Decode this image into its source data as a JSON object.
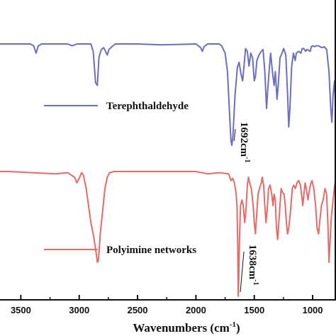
{
  "chart_data": {
    "type": "line",
    "xlabel": "Wavenumbers (cm",
    "xlabel_sup": "-1",
    "xlabel_close": ")",
    "x_ticks": [
      3500,
      3000,
      2500,
      2000,
      1500,
      1000
    ],
    "xlim": [
      3800,
      800
    ],
    "x_reversed": true,
    "grid": false,
    "legend_placement": "inline-right",
    "series": [
      {
        "name": "Terephthaldehyde",
        "color": "#6a6fbf",
        "points": [
          [
            3800,
            0.0
          ],
          [
            3420,
            0.0
          ],
          [
            3390,
            0.02
          ],
          [
            3370,
            0.1
          ],
          [
            3350,
            0.02
          ],
          [
            3320,
            0.0
          ],
          [
            3100,
            0.0
          ],
          [
            3060,
            0.02
          ],
          [
            3020,
            0.0
          ],
          [
            2900,
            0.0
          ],
          [
            2880,
            0.08
          ],
          [
            2860,
            0.42
          ],
          [
            2845,
            0.45
          ],
          [
            2830,
            0.14
          ],
          [
            2810,
            0.06
          ],
          [
            2790,
            0.04
          ],
          [
            2760,
            0.12
          ],
          [
            2745,
            0.06
          ],
          [
            2720,
            0.03
          ],
          [
            2690,
            0.0
          ],
          [
            2500,
            0.0
          ],
          [
            2300,
            0.01
          ],
          [
            2000,
            0.0
          ],
          [
            1960,
            0.04
          ],
          [
            1945,
            0.08
          ],
          [
            1930,
            0.03
          ],
          [
            1900,
            0.0
          ],
          [
            1850,
            0.0
          ],
          [
            1800,
            0.0
          ],
          [
            1780,
            0.02
          ],
          [
            1750,
            0.1
          ],
          [
            1730,
            0.3
          ],
          [
            1712,
            0.75
          ],
          [
            1700,
            1.05
          ],
          [
            1692,
            1.1
          ],
          [
            1683,
            1.0
          ],
          [
            1665,
            0.55
          ],
          [
            1645,
            0.25
          ],
          [
            1630,
            0.2
          ],
          [
            1615,
            0.32
          ],
          [
            1600,
            0.4
          ],
          [
            1585,
            0.2
          ],
          [
            1575,
            0.05
          ],
          [
            1560,
            0.08
          ],
          [
            1545,
            0.24
          ],
          [
            1530,
            0.1
          ],
          [
            1515,
            0.15
          ],
          [
            1500,
            0.4
          ],
          [
            1490,
            0.35
          ],
          [
            1478,
            0.18
          ],
          [
            1460,
            0.12
          ],
          [
            1440,
            0.08
          ],
          [
            1425,
            0.06
          ],
          [
            1410,
            0.3
          ],
          [
            1395,
            0.7
          ],
          [
            1385,
            0.5
          ],
          [
            1370,
            0.25
          ],
          [
            1360,
            0.1
          ],
          [
            1345,
            0.3
          ],
          [
            1330,
            0.45
          ],
          [
            1320,
            0.3
          ],
          [
            1305,
            0.6
          ],
          [
            1295,
            0.45
          ],
          [
            1280,
            0.15
          ],
          [
            1262,
            0.1
          ],
          [
            1248,
            0.05
          ],
          [
            1230,
            0.12
          ],
          [
            1215,
            0.55
          ],
          [
            1205,
            0.9
          ],
          [
            1195,
            0.7
          ],
          [
            1180,
            0.25
          ],
          [
            1165,
            0.1
          ],
          [
            1150,
            0.18
          ],
          [
            1140,
            0.1
          ],
          [
            1120,
            0.08
          ],
          [
            1100,
            0.1
          ],
          [
            1090,
            0.05
          ],
          [
            1075,
            0.05
          ],
          [
            1060,
            0.08
          ],
          [
            1050,
            0.06
          ],
          [
            1020,
            0.08
          ],
          [
            1012,
            0.03
          ],
          [
            1000,
            0.02
          ],
          [
            985,
            0.03
          ],
          [
            970,
            0.02
          ],
          [
            950,
            0.02
          ],
          [
            920,
            0.04
          ],
          [
            900,
            0.03
          ],
          [
            880,
            0.06
          ],
          [
            860,
            0.3
          ],
          [
            845,
            0.7
          ],
          [
            835,
            0.85
          ],
          [
            825,
            0.55
          ],
          [
            812,
            0.4
          ],
          [
            800,
            0.78
          ]
        ]
      },
      {
        "name": "Polyimine networks",
        "color": "#e66a6a",
        "points": [
          [
            3800,
            0.0
          ],
          [
            3600,
            0.0
          ],
          [
            3400,
            0.01
          ],
          [
            3200,
            0.02
          ],
          [
            3100,
            0.01
          ],
          [
            3040,
            0.05
          ],
          [
            3020,
            0.1
          ],
          [
            3000,
            0.06
          ],
          [
            2980,
            0.01
          ],
          [
            2965,
            0.03
          ],
          [
            2940,
            0.15
          ],
          [
            2920,
            0.3
          ],
          [
            2900,
            0.45
          ],
          [
            2880,
            0.55
          ],
          [
            2860,
            0.68
          ],
          [
            2845,
            0.8
          ],
          [
            2835,
            0.78
          ],
          [
            2820,
            0.55
          ],
          [
            2800,
            0.35
          ],
          [
            2780,
            0.15
          ],
          [
            2760,
            0.05
          ],
          [
            2740,
            0.01
          ],
          [
            2700,
            0.0
          ],
          [
            2500,
            0.0
          ],
          [
            2300,
            0.0
          ],
          [
            2100,
            0.0
          ],
          [
            2000,
            0.0
          ],
          [
            1900,
            0.02
          ],
          [
            1800,
            0.01
          ],
          [
            1720,
            0.02
          ],
          [
            1700,
            0.08
          ],
          [
            1685,
            0.06
          ],
          [
            1670,
            0.1
          ],
          [
            1655,
            0.2
          ],
          [
            1648,
            0.32
          ],
          [
            1642,
            0.65
          ],
          [
            1638,
            1.1
          ],
          [
            1633,
            0.95
          ],
          [
            1626,
            0.55
          ],
          [
            1618,
            0.3
          ],
          [
            1605,
            0.25
          ],
          [
            1595,
            0.3
          ],
          [
            1582,
            0.45
          ],
          [
            1572,
            0.35
          ],
          [
            1560,
            0.12
          ],
          [
            1550,
            0.05
          ],
          [
            1540,
            0.1
          ],
          [
            1525,
            0.15
          ],
          [
            1510,
            0.3
          ],
          [
            1500,
            0.45
          ],
          [
            1490,
            0.55
          ],
          [
            1478,
            0.35
          ],
          [
            1468,
            0.2
          ],
          [
            1455,
            0.15
          ],
          [
            1440,
            0.1
          ],
          [
            1432,
            0.05
          ],
          [
            1420,
            0.12
          ],
          [
            1410,
            0.3
          ],
          [
            1400,
            0.45
          ],
          [
            1390,
            0.35
          ],
          [
            1378,
            0.15
          ],
          [
            1365,
            0.12
          ],
          [
            1350,
            0.2
          ],
          [
            1340,
            0.3
          ],
          [
            1330,
            0.2
          ],
          [
            1320,
            0.25
          ],
          [
            1310,
            0.5
          ],
          [
            1300,
            0.6
          ],
          [
            1290,
            0.45
          ],
          [
            1280,
            0.3
          ],
          [
            1270,
            0.15
          ],
          [
            1260,
            0.18
          ],
          [
            1245,
            0.2
          ],
          [
            1235,
            0.3
          ],
          [
            1225,
            0.45
          ],
          [
            1215,
            0.55
          ],
          [
            1205,
            0.5
          ],
          [
            1190,
            0.35
          ],
          [
            1175,
            0.15
          ],
          [
            1162,
            0.12
          ],
          [
            1148,
            0.15
          ],
          [
            1135,
            0.1
          ],
          [
            1120,
            0.08
          ],
          [
            1105,
            0.12
          ],
          [
            1095,
            0.2
          ],
          [
            1085,
            0.3
          ],
          [
            1075,
            0.2
          ],
          [
            1065,
            0.1
          ],
          [
            1055,
            0.15
          ],
          [
            1040,
            0.25
          ],
          [
            1030,
            0.18
          ],
          [
            1015,
            0.1
          ],
          [
            1005,
            0.08
          ],
          [
            990,
            0.15
          ],
          [
            975,
            0.3
          ],
          [
            962,
            0.5
          ],
          [
            950,
            0.55
          ],
          [
            940,
            0.45
          ],
          [
            925,
            0.3
          ],
          [
            910,
            0.25
          ],
          [
            895,
            0.15
          ],
          [
            880,
            0.2
          ],
          [
            868,
            0.5
          ],
          [
            860,
            0.8
          ],
          [
            850,
            0.6
          ],
          [
            840,
            0.4
          ],
          [
            830,
            0.3
          ],
          [
            815,
            0.15
          ],
          [
            800,
            0.05
          ]
        ]
      }
    ],
    "annotations": [
      {
        "text": "1692cm",
        "sup": "-1",
        "x": 1692,
        "series": 0
      },
      {
        "text": "1638cm",
        "sup": "-1",
        "x": 1638,
        "series": 1
      }
    ]
  }
}
